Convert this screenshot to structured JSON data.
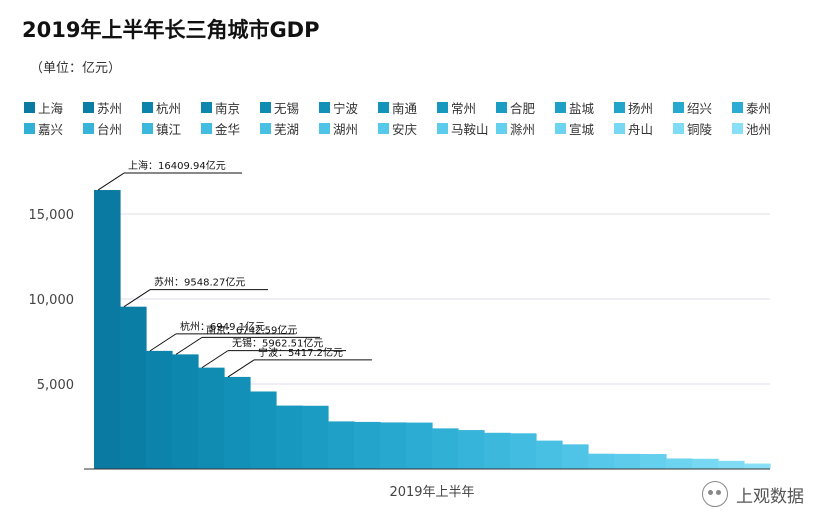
{
  "header": {
    "title": "2019年上半年长三角城市GDP",
    "unit": "（单位：亿元）"
  },
  "watermark": {
    "label": "上观数据",
    "icon": "wechat-icon"
  },
  "chart_data": {
    "type": "bar",
    "title": "2019年上半年长三角城市GDP",
    "subtitle": "（单位：亿元）",
    "xlabel": "2019年上半年",
    "ylabel": "",
    "ylim": [
      0,
      17000
    ],
    "yticks": [
      5000,
      10000,
      15000
    ],
    "ytick_labels": [
      "5,000",
      "10,000",
      "15,000"
    ],
    "grid": true,
    "legend_position": "top",
    "series": [
      {
        "name": "上海",
        "value": 16409.94,
        "color": "#0a7aa2"
      },
      {
        "name": "苏州",
        "value": 9548.27,
        "color": "#0b7ea6"
      },
      {
        "name": "杭州",
        "value": 6949.1,
        "color": "#0c83ab"
      },
      {
        "name": "南京",
        "value": 6742.59,
        "color": "#0e87af"
      },
      {
        "name": "无锡",
        "value": 5962.51,
        "color": "#108cb3"
      },
      {
        "name": "宁波",
        "value": 5417.2,
        "color": "#1290b7"
      },
      {
        "name": "南通",
        "value": 4560,
        "color": "#1494bb"
      },
      {
        "name": "常州",
        "value": 3730,
        "color": "#1798bf"
      },
      {
        "name": "合肥",
        "value": 3720,
        "color": "#1a9cc3"
      },
      {
        "name": "盐城",
        "value": 2800,
        "color": "#1ea0c7"
      },
      {
        "name": "扬州",
        "value": 2770,
        "color": "#22a4cb"
      },
      {
        "name": "绍兴",
        "value": 2740,
        "color": "#27a8cf"
      },
      {
        "name": "泰州",
        "value": 2730,
        "color": "#2cacd3"
      },
      {
        "name": "嘉兴",
        "value": 2390,
        "color": "#31b0d6"
      },
      {
        "name": "台州",
        "value": 2290,
        "color": "#36b4da"
      },
      {
        "name": "镇江",
        "value": 2130,
        "color": "#3cb8dd"
      },
      {
        "name": "金华",
        "value": 2100,
        "color": "#42bce0"
      },
      {
        "name": "芜湖",
        "value": 1670,
        "color": "#48c0e3"
      },
      {
        "name": "湖州",
        "value": 1450,
        "color": "#4fc4e6"
      },
      {
        "name": "安庆",
        "value": 900,
        "color": "#56c8e9"
      },
      {
        "name": "马鞍山",
        "value": 890,
        "color": "#5dccec"
      },
      {
        "name": "滁州",
        "value": 880,
        "color": "#65d0ee"
      },
      {
        "name": "宣城",
        "value": 620,
        "color": "#6dd4f0"
      },
      {
        "name": "舟山",
        "value": 600,
        "color": "#76d8f2"
      },
      {
        "name": "铜陵",
        "value": 480,
        "color": "#7fdcf4"
      },
      {
        "name": "池州",
        "value": 320,
        "color": "#89e0f6"
      }
    ],
    "annotations": [
      {
        "city": "上海",
        "text": "上海：16409.94亿元"
      },
      {
        "city": "苏州",
        "text": "苏州：9548.27亿元"
      },
      {
        "city": "杭州",
        "text": "杭州：6949.1亿元"
      },
      {
        "city": "南京",
        "text": "南京：6742.59亿元"
      },
      {
        "city": "无锡",
        "text": "无锡：5962.51亿元"
      },
      {
        "city": "宁波",
        "text": "宁波：5417.2亿元"
      }
    ]
  }
}
